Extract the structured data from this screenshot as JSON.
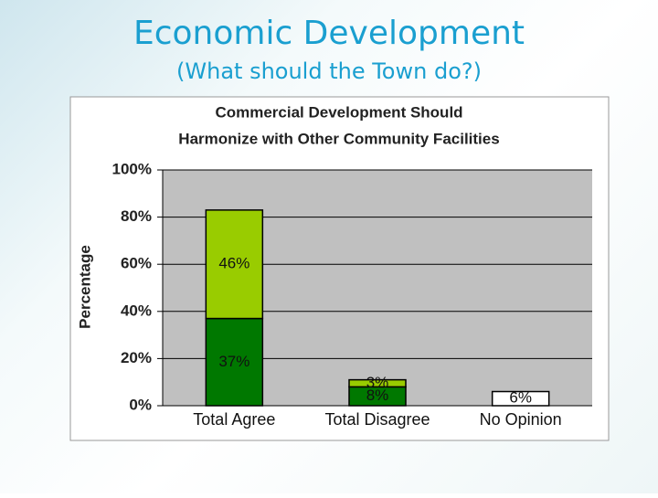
{
  "slide": {
    "title": "Economic Development",
    "subtitle": "(What should the Town do?)"
  },
  "chart_data": {
    "type": "stacked_bar",
    "title": [
      "Commercial Development Should",
      "Harmonize with Other Community Facilities"
    ],
    "y_label": "Percentage",
    "categories": [
      "Total Agree",
      "Total Disagree",
      "No Opinion"
    ],
    "series": [
      {
        "color": "#007800",
        "values": [
          37,
          8,
          null
        ],
        "value_labels": [
          "37%",
          "8%",
          null
        ]
      },
      {
        "color": "#99cc00",
        "values": [
          46,
          3,
          null
        ],
        "value_labels": [
          "46%",
          "3%",
          null
        ]
      },
      {
        "color": "#ffffff",
        "values": [
          null,
          null,
          6
        ],
        "value_labels": [
          null,
          null,
          "6%"
        ]
      }
    ],
    "ylim": [
      0,
      100
    ],
    "yticks": [
      {
        "value": 0,
        "label": "0%"
      },
      {
        "value": 20,
        "label": "20%"
      },
      {
        "value": 40,
        "label": "40%"
      },
      {
        "value": 60,
        "label": "60%"
      },
      {
        "value": 80,
        "label": "80%"
      },
      {
        "value": 100,
        "label": "100%"
      }
    ],
    "grid": true
  }
}
